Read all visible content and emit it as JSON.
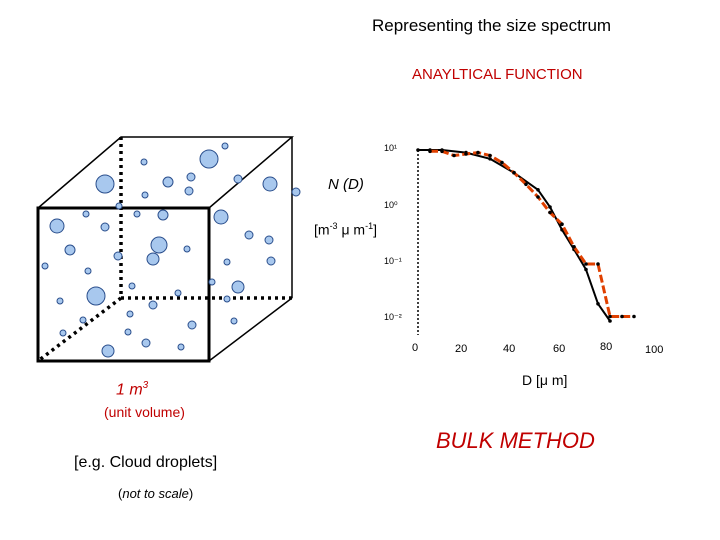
{
  "title": "Representing the size spectrum",
  "subtitle": "ANAYLTICAL FUNCTION",
  "chart_data": {
    "type": "line",
    "yscale": "log",
    "ylabel": "N (D)",
    "yunits": {
      "base1": "[m",
      "exp1": "-3",
      "mid": " μ m",
      "exp2": "-1",
      "end": "]"
    },
    "xlabel": "D [μ m]",
    "yticks": [
      "10¹",
      "10⁰",
      "10⁻¹",
      "10⁻²"
    ],
    "xticks": [
      "0",
      "20",
      "40",
      "60",
      "80",
      "100"
    ],
    "xlim": [
      0,
      100
    ],
    "series": [
      {
        "color": "#000000",
        "x": [
          0,
          5,
          10,
          20,
          30,
          40,
          50,
          55,
          60,
          65,
          70,
          75,
          80
        ],
        "y": [
          10,
          10,
          10,
          9,
          7,
          4,
          2,
          1,
          0.4,
          0.18,
          0.08,
          0.02,
          0.01
        ]
      },
      {
        "color": "#e04000",
        "x": [
          5,
          10,
          15,
          20,
          25,
          30,
          35,
          40,
          45,
          50,
          55,
          60,
          65,
          70,
          75,
          80,
          85,
          90
        ],
        "y": [
          9.5,
          9.5,
          8,
          8.5,
          9,
          8,
          6,
          4,
          2.5,
          1.5,
          0.8,
          0.5,
          0.2,
          0.1,
          0.1,
          0.012,
          0.012,
          0.012
        ]
      }
    ]
  },
  "volume_label": {
    "base": "1 m",
    "exp": "3"
  },
  "unit_label": "(unit volume)",
  "method": "BULK METHOD",
  "example": "[e.g. Cloud droplets]",
  "scale": {
    "open": "(",
    "text": "not to scale",
    "close": ")"
  },
  "colors": {
    "accent": "#c00000",
    "droplet": "#a8c8ee",
    "droplet_stroke": "#2a4e8c"
  }
}
